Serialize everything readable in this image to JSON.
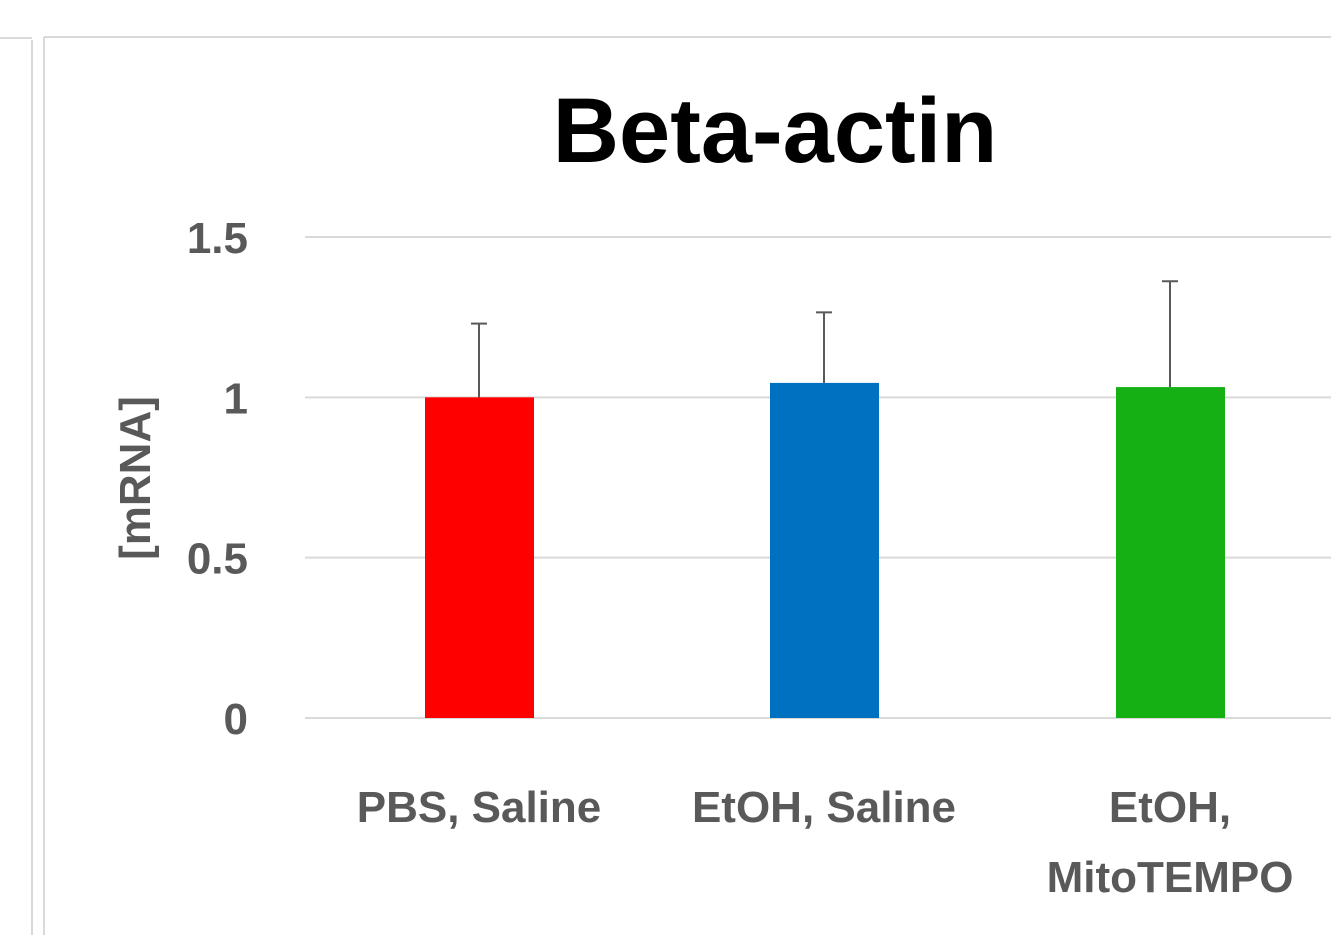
{
  "chart_data": {
    "type": "bar",
    "title": "Beta-actin",
    "y_label": "[mRNA]",
    "categories": [
      "PBS, Saline",
      "EtOH, Saline",
      "EtOH, MitoTEMPO"
    ],
    "values": [
      1.0,
      1.045,
      1.032
    ],
    "errors": [
      0.23,
      0.22,
      0.33
    ],
    "colors": [
      "#ff0000",
      "#0070c0",
      "#14b014"
    ],
    "ylim": [
      0,
      1.5
    ],
    "yticks": [
      0,
      0.5,
      1,
      1.5
    ],
    "grid": true
  }
}
